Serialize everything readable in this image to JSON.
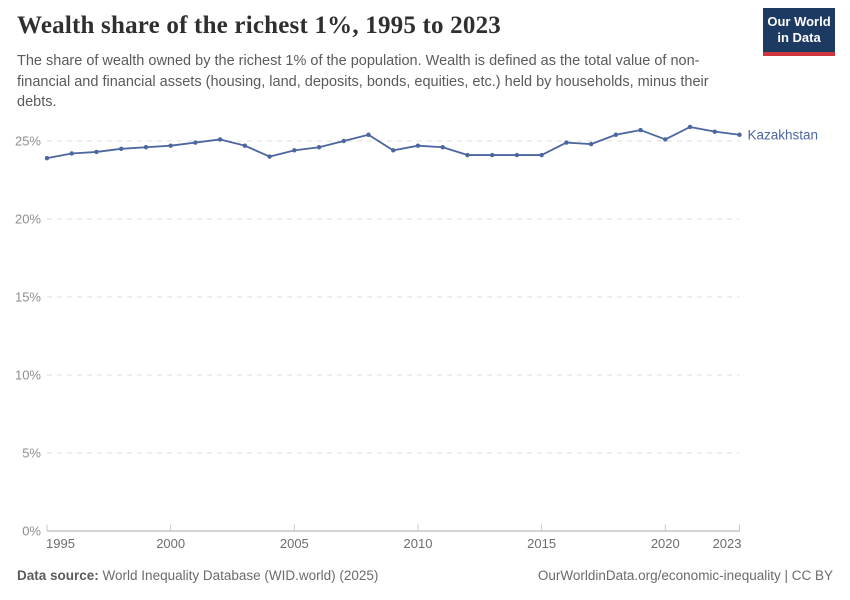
{
  "header": {
    "title": "Wealth share of the richest 1%, 1995 to 2023",
    "subtitle": "The share of wealth owned by the richest 1% of the population. Wealth is defined as the total value of non-financial and financial assets (housing, land, deposits, bonds, equities, etc.) held by households, minus their debts."
  },
  "logo": {
    "line1": "Our World",
    "line2": "in Data",
    "bg_color": "#1d3a63",
    "accent_color": "#d0353f"
  },
  "chart_data": {
    "type": "line",
    "title": "Wealth share of the richest 1%",
    "entity_label": "Kazakhstan",
    "x": [
      1995,
      1996,
      1997,
      1998,
      1999,
      2000,
      2001,
      2002,
      2003,
      2004,
      2005,
      2006,
      2007,
      2008,
      2009,
      2010,
      2011,
      2012,
      2013,
      2014,
      2015,
      2016,
      2017,
      2018,
      2019,
      2020,
      2021,
      2022,
      2023
    ],
    "series": [
      {
        "name": "Kazakhstan",
        "values": [
          23.9,
          24.2,
          24.3,
          24.5,
          24.6,
          24.7,
          24.9,
          25.1,
          24.7,
          24.0,
          24.4,
          24.6,
          25.0,
          25.4,
          24.4,
          24.7,
          24.6,
          24.1,
          24.1,
          24.1,
          24.1,
          24.9,
          24.8,
          25.4,
          25.7,
          25.1,
          25.9,
          25.6,
          25.4
        ]
      }
    ],
    "xlabel": "",
    "ylabel": "",
    "xlim": [
      1995,
      2023
    ],
    "ylim": [
      0,
      25
    ],
    "yticks": [
      0,
      5,
      10,
      15,
      20,
      25
    ],
    "ytick_labels": [
      "0%",
      "5%",
      "10%",
      "15%",
      "20%",
      "25%"
    ],
    "xticks": [
      1995,
      2000,
      2005,
      2010,
      2015,
      2020,
      2023
    ],
    "xtick_labels": [
      "1995",
      "2000",
      "2005",
      "2010",
      "2015",
      "2020",
      "2023"
    ],
    "grid": "horizontal-dashed",
    "legend_position": "end-of-line",
    "line_color": "#4c669f",
    "grid_color": "#dedede",
    "axis_line_color": "#a8a8a8",
    "ytick_label_color": "#8e8e8e",
    "xtick_label_color": "#6d6d6d"
  },
  "footer": {
    "source_label": "Data source:",
    "source_value": "World Inequality Database (WID.world) (2025)",
    "right_text": "OurWorldinData.org/economic-inequality | CC BY"
  }
}
